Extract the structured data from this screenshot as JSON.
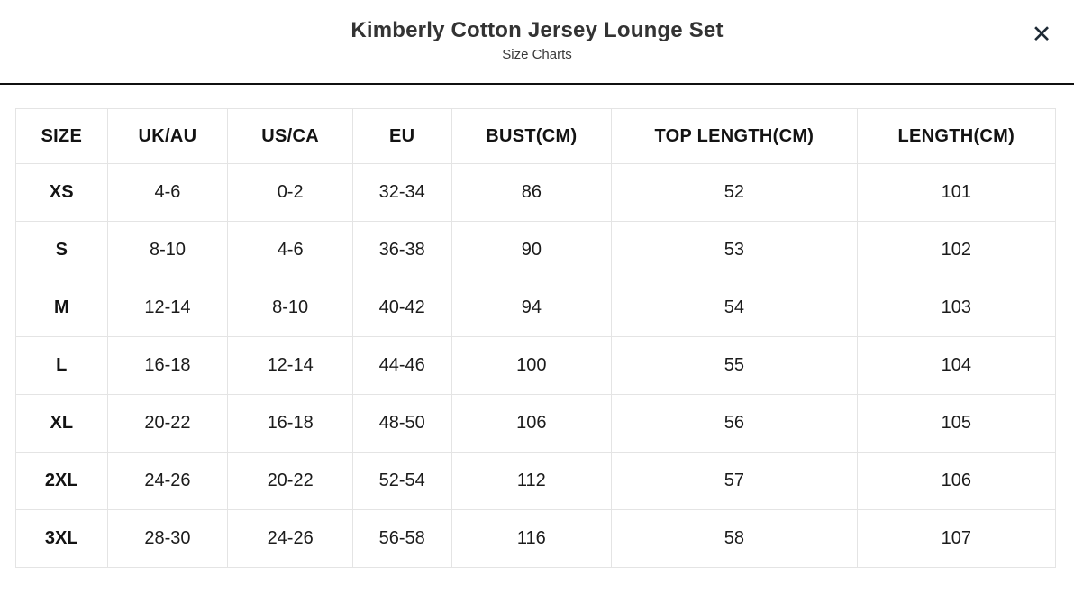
{
  "modal": {
    "title": "Kimberly Cotton Jersey Lounge Set",
    "subtitle": "Size Charts",
    "close_icon": "✕",
    "close_label": "Close"
  },
  "size_table": {
    "headers": [
      "SIZE",
      "UK/AU",
      "US/CA",
      "EU",
      "BUST(CM)",
      "TOP LENGTH(CM)",
      "LENGTH(CM)"
    ],
    "column_widths_pct": [
      8.8,
      11.6,
      12.0,
      9.5,
      15.4,
      23.6,
      19.1
    ],
    "rows": [
      [
        "XS",
        "4-6",
        "0-2",
        "32-34",
        "86",
        "52",
        "101"
      ],
      [
        "S",
        "8-10",
        "4-6",
        "36-38",
        "90",
        "53",
        "102"
      ],
      [
        "M",
        "12-14",
        "8-10",
        "40-42",
        "94",
        "54",
        "103"
      ],
      [
        "L",
        "16-18",
        "12-14",
        "44-46",
        "100",
        "55",
        "104"
      ],
      [
        "XL",
        "20-22",
        "16-18",
        "48-50",
        "106",
        "56",
        "105"
      ],
      [
        "2XL",
        "24-26",
        "20-22",
        "52-54",
        "112",
        "57",
        "106"
      ],
      [
        "3XL",
        "28-30",
        "24-26",
        "56-58",
        "116",
        "58",
        "107"
      ]
    ]
  },
  "colors": {
    "text": "#1b1b1b",
    "header_text": "#131313",
    "title": "#333333",
    "subtitle": "#3a3a3a",
    "divider": "#101010",
    "border": "#e4e4e4",
    "close": "#1e2a35"
  }
}
